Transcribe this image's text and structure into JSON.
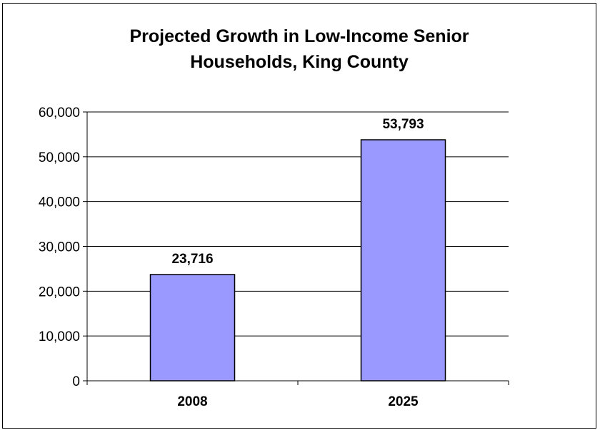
{
  "chart_data": {
    "type": "bar",
    "title_lines": [
      "Projected Growth in Low-Income Senior",
      "Households, King County"
    ],
    "title": "Projected Growth in Low-Income Senior Households, King County",
    "xlabel": "",
    "ylabel": "",
    "categories": [
      "2008",
      "2025"
    ],
    "values": [
      23716,
      53793
    ],
    "data_labels": [
      "23,716",
      "53,793"
    ],
    "ylim": [
      0,
      60000
    ],
    "yticks": [
      0,
      10000,
      20000,
      30000,
      40000,
      50000,
      60000
    ],
    "ytick_labels": [
      "0",
      "10,000",
      "20,000",
      "30,000",
      "40,000",
      "50,000",
      "60,000"
    ],
    "grid": true,
    "legend": "none",
    "colors": {
      "bar_fill": "#9999ff",
      "bar_stroke": "#000000",
      "gridline": "#000000",
      "text": "#000000"
    }
  }
}
